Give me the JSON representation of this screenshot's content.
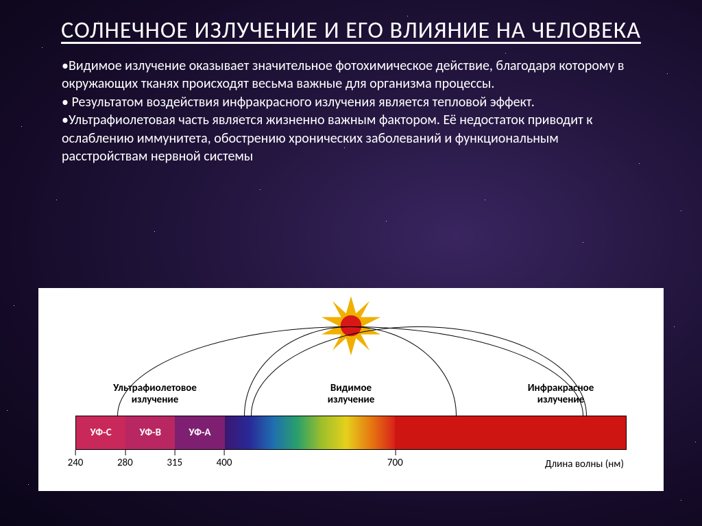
{
  "title": "СОЛНЕЧНОЕ ИЗЛУЧЕНИЕ И ЕГО ВЛИЯНИЕ НА ЧЕЛОВЕКА",
  "bullets": {
    "b1": "Видимое излучение оказывает значительное фотохимическое действие, благодаря которому в окружающих тканях происходят весьма важные для организма процессы.",
    "b2": " Результатом воздействия инфракрасного излучения является тепловой эффект.",
    "b3": "Ультрафиолетовая часть является жизненно важным фактором. Её недостаток приводит к ослаблению иммунитета, обострению хронических заболеваний и функциональным расстройствам нервной системы"
  },
  "diagram": {
    "categories": {
      "uv": "Ультрафиолетовое\nизлучение",
      "visible": "Видимое\nизлучение",
      "ir": "Инфракрасное\nизлучение"
    },
    "segments": [
      {
        "label": "УФ-С",
        "left_pct": 0.0,
        "width_pct": 9.0,
        "color": "#c9285a"
      },
      {
        "label": "УФ-В",
        "left_pct": 9.0,
        "width_pct": 9.0,
        "color": "#b82761"
      },
      {
        "label": "УФ-А",
        "left_pct": 18.0,
        "width_pct": 9.0,
        "color": "#7e1f72"
      }
    ],
    "visible_gradient": {
      "left_pct": 27.0,
      "width_pct": 31.0,
      "stops": [
        "#3a1870",
        "#2a2898",
        "#1f6fb0",
        "#2aa06a",
        "#9fbf2a",
        "#e6d01c",
        "#e67a10",
        "#d8221a"
      ]
    },
    "ir": {
      "left_pct": 58.0,
      "width_pct": 42.0,
      "color": "#cf1512"
    },
    "ticks": [
      {
        "pos_pct": 0.0,
        "label": "240"
      },
      {
        "pos_pct": 9.0,
        "label": "280"
      },
      {
        "pos_pct": 18.0,
        "label": "315"
      },
      {
        "pos_pct": 27.0,
        "label": "400"
      },
      {
        "pos_pct": 58.0,
        "label": "700"
      }
    ],
    "axis_label": "Длина волны (нм)",
    "sun": {
      "ray_color": "#f0b000",
      "core_color": "#d81818"
    },
    "arc_color": "#000000",
    "background": "#ffffff",
    "font_family": "Arial",
    "label_fontsize": 15,
    "seg_label_fontsize": 15,
    "title_fontsize": 34,
    "body_fontsize": 20
  }
}
